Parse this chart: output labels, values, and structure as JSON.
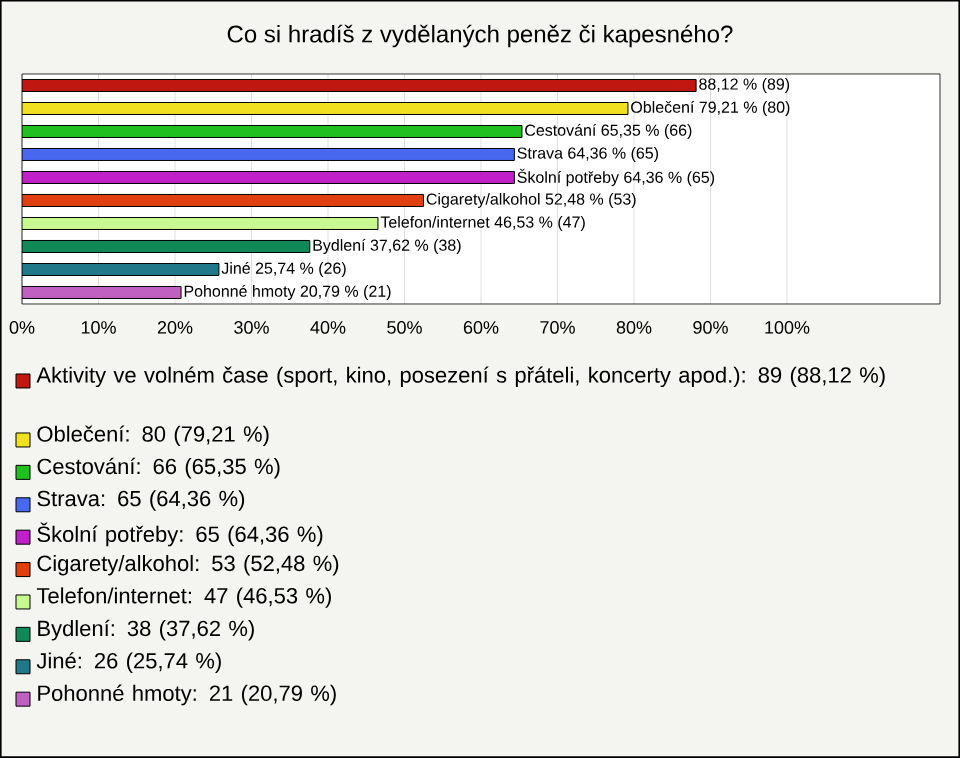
{
  "chart_data": {
    "type": "bar",
    "orientation": "horizontal",
    "title": "Co si hradíš z vydělaných peněz či kapesného?",
    "categories": [
      null,
      null,
      null,
      null,
      null,
      null,
      null,
      null,
      null,
      null
    ],
    "xlim": [
      0,
      120
    ],
    "xticks": [
      {
        "value": 0,
        "label": "0%"
      },
      {
        "value": 10,
        "label": "10%"
      },
      {
        "value": 20,
        "label": "20%"
      },
      {
        "value": 30,
        "label": "30%"
      },
      {
        "value": 40,
        "label": "40%"
      },
      {
        "value": 50,
        "label": "50%"
      },
      {
        "value": 60,
        "label": "60%"
      },
      {
        "value": 70,
        "label": "70%"
      },
      {
        "value": 80,
        "label": "80%"
      },
      {
        "value": 90,
        "label": "90%"
      },
      {
        "value": 100,
        "label": "100%"
      }
    ],
    "grid": "x",
    "legend": "bottom",
    "series": [
      {
        "name": "Aktivity ve volném čase (sport, kino, posezení s přáteli, koncerty apod.): 89 (88,12 %)",
        "color": "#c01810",
        "values": [
          88.12,
          null,
          null,
          null,
          null,
          null,
          null,
          null,
          null,
          null
        ],
        "value_labels": [
          "88,12 % (89)",
          null,
          null,
          null,
          null,
          null,
          null,
          null,
          null,
          null
        ]
      },
      {
        "name": "Oblečení: 80 (79,21 %)",
        "color": "#f0e020",
        "values": [
          null,
          79.21,
          null,
          null,
          null,
          null,
          null,
          null,
          null,
          null
        ],
        "value_labels": [
          null,
          "Oblečení 79,21 % (80)",
          null,
          null,
          null,
          null,
          null,
          null,
          null,
          null
        ]
      },
      {
        "name": "Cestování: 66 (65,35 %)",
        "color": "#20c020",
        "values": [
          null,
          null,
          65.35,
          null,
          null,
          null,
          null,
          null,
          null,
          null
        ],
        "value_labels": [
          null,
          null,
          "Cestování 65,35 % (66)",
          null,
          null,
          null,
          null,
          null,
          null,
          null
        ]
      },
      {
        "name": "Strava: 65 (64,36 %)",
        "color": "#4868f0",
        "values": [
          null,
          null,
          null,
          64.36,
          null,
          null,
          null,
          null,
          null,
          null
        ],
        "value_labels": [
          null,
          null,
          null,
          "Strava 64,36 % (65)",
          null,
          null,
          null,
          null,
          null,
          null
        ]
      },
      {
        "name": "Školní potřeby: 65 (64,36 %)",
        "color": "#c020c8",
        "values": [
          null,
          null,
          null,
          null,
          64.36,
          null,
          null,
          null,
          null,
          null
        ],
        "value_labels": [
          null,
          null,
          null,
          null,
          "Školní potřeby 64,36 % (65)",
          null,
          null,
          null,
          null,
          null
        ]
      },
      {
        "name": "Cigarety/alkohol: 53 (52,48 %)",
        "color": "#e04010",
        "values": [
          null,
          null,
          null,
          null,
          null,
          52.48,
          null,
          null,
          null,
          null
        ],
        "value_labels": [
          null,
          null,
          null,
          null,
          null,
          "Cigarety/alkohol 52,48 % (53)",
          null,
          null,
          null,
          null
        ]
      },
      {
        "name": "Telefon/internet: 47 (46,53 %)",
        "color": "#c8f890",
        "values": [
          null,
          null,
          null,
          null,
          null,
          null,
          46.53,
          null,
          null,
          null
        ],
        "value_labels": [
          null,
          null,
          null,
          null,
          null,
          null,
          "Telefon/internet 46,53 % (47)",
          null,
          null,
          null
        ]
      },
      {
        "name": "Bydlení: 38 (37,62 %)",
        "color": "#108858",
        "values": [
          null,
          null,
          null,
          null,
          null,
          null,
          null,
          37.62,
          null,
          null
        ],
        "value_labels": [
          null,
          null,
          null,
          null,
          null,
          null,
          null,
          "Bydlení 37,62 % (38)",
          null,
          null
        ]
      },
      {
        "name": "Jiné: 26 (25,74 %)",
        "color": "#207888",
        "values": [
          null,
          null,
          null,
          null,
          null,
          null,
          null,
          null,
          25.74,
          null
        ],
        "value_labels": [
          null,
          null,
          null,
          null,
          null,
          null,
          null,
          null,
          "Jiné 25,74 % (26)",
          null
        ]
      },
      {
        "name": "Pohonné hmoty: 21 (20,79 %)",
        "color": "#c060c0",
        "values": [
          null,
          null,
          null,
          null,
          null,
          null,
          null,
          null,
          null,
          20.79
        ],
        "value_labels": [
          null,
          null,
          null,
          null,
          null,
          null,
          null,
          null,
          null,
          "Pohonné hmoty 20,79 % (21)"
        ]
      }
    ]
  }
}
